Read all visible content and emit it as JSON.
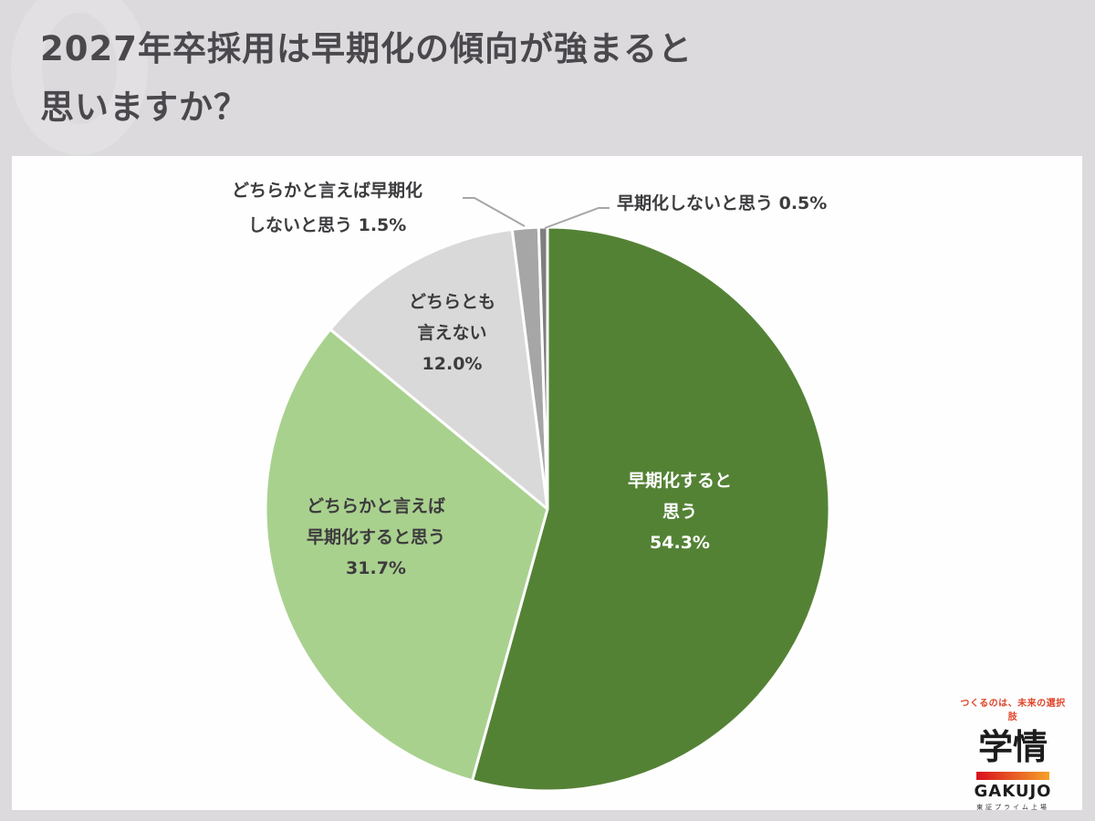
{
  "title": {
    "line1": "2027年卒採用は早期化の傾向が強まると",
    "line2": "思いますか？"
  },
  "chart_data": {
    "type": "pie",
    "title": "2027年卒採用は早期化の傾向が強まると思いますか？",
    "start_angle": "12 o'clock, clockwise",
    "categories": [
      "早期化すると思う",
      "どちらかと言えば早期化すると思う",
      "どちらとも言えない",
      "どちらかと言えば早期化しないと思う",
      "早期化しないと思う"
    ],
    "values": [
      54.3,
      31.7,
      12.0,
      1.5,
      0.5
    ],
    "unit": "%",
    "colors": [
      "#548235",
      "#a9d18e",
      "#d9d9d9",
      "#a6a6a6",
      "#7f7f7f"
    ],
    "legend": "none (data labels on slices)"
  },
  "labels": {
    "s1": {
      "line1": "早期化すると",
      "line2": "思う",
      "value": "54.3%"
    },
    "s2": {
      "line1": "どちらかと言えば",
      "line2": "早期化すると思う",
      "value": "31.7%"
    },
    "s3": {
      "line1": "どちらとも",
      "line2": "言えない",
      "value": "12.0%"
    },
    "s4": {
      "line1": "どちらかと言えば早期化",
      "line2": "しないと思う 1.5%"
    },
    "s5": {
      "line1": "早期化しないと思う 0.5%"
    }
  },
  "logo": {
    "tagline": "つくるのは、未来の選択肢",
    "kanji": "学情",
    "brand": "GAKUJO",
    "listed": "東証プライム上場"
  }
}
